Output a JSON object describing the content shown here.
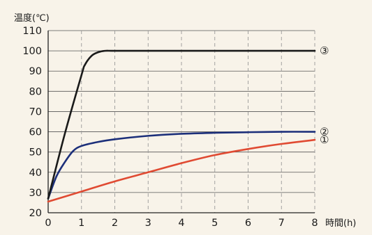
{
  "chart_data": {
    "type": "line",
    "title": "",
    "xlabel": "時間(h)",
    "ylabel": "温度(℃)",
    "xlim": [
      0,
      8
    ],
    "ylim": [
      20,
      110
    ],
    "x_ticks": [
      "0",
      "1",
      "2",
      "3",
      "4",
      "5",
      "6",
      "7",
      "8"
    ],
    "y_ticks": [
      "20",
      "30",
      "40",
      "50",
      "60",
      "70",
      "80",
      "90",
      "100",
      "110"
    ],
    "grid": true,
    "series": [
      {
        "name": "①",
        "color": "#e04a32",
        "x": [
          0,
          1,
          2,
          3,
          4,
          5,
          6,
          7,
          8
        ],
        "y": [
          25.5,
          30.5,
          35.5,
          40,
          44.5,
          48.5,
          51.5,
          54,
          56
        ]
      },
      {
        "name": "②",
        "color": "#1c2f7a",
        "x": [
          0,
          0.25,
          0.5,
          0.75,
          1,
          1.5,
          2,
          3,
          4,
          5,
          6,
          7,
          8
        ],
        "y": [
          27,
          38,
          45,
          50.5,
          53,
          55,
          56.3,
          58,
          59,
          59.5,
          59.8,
          60,
          60
        ]
      },
      {
        "name": "③",
        "color": "#1a1a1a",
        "x": [
          0,
          0.5,
          1,
          1.1,
          1.3,
          1.5,
          1.7,
          2,
          3,
          4,
          5,
          6,
          7,
          8
        ],
        "y": [
          27,
          59,
          88,
          93,
          97.5,
          99.3,
          100,
          100,
          100,
          100,
          100,
          100,
          100,
          100
        ]
      }
    ]
  }
}
